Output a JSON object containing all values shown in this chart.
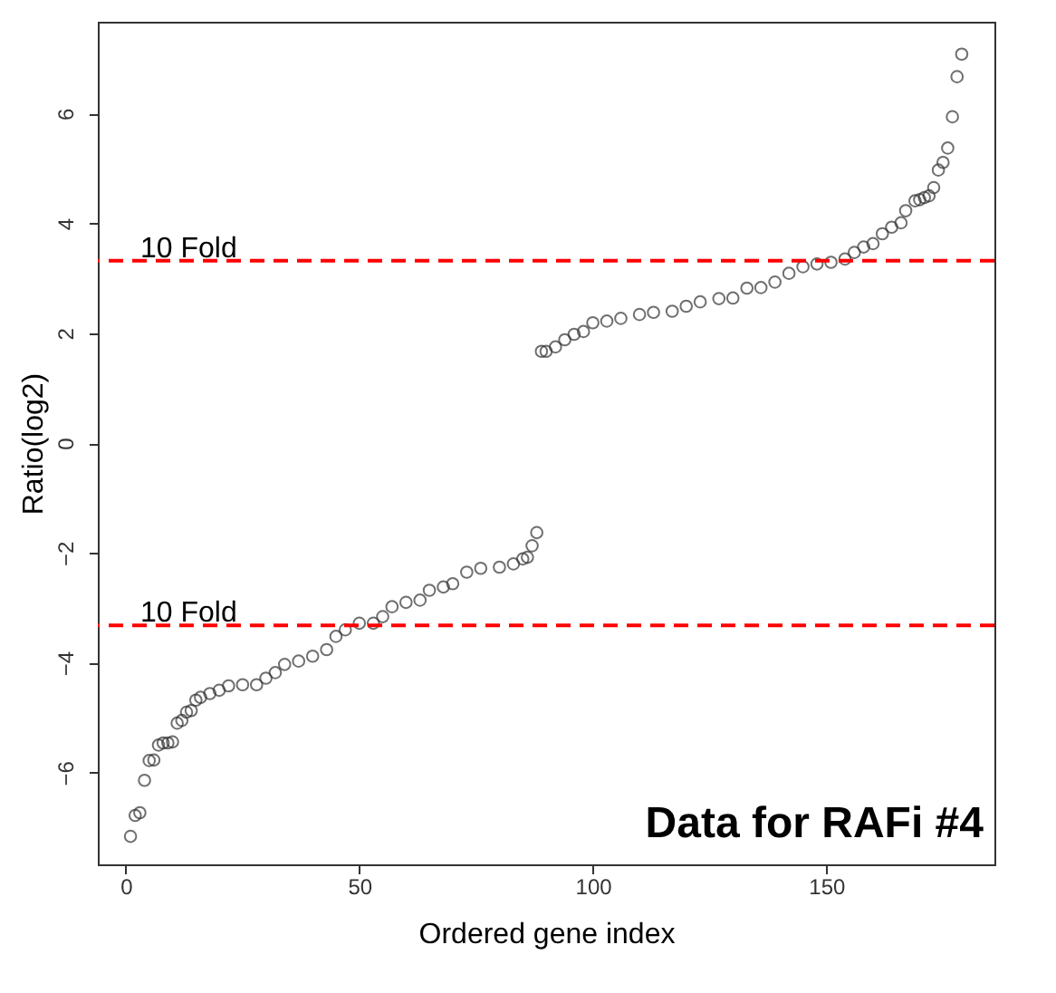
{
  "chart_data": {
    "type": "scatter",
    "title": "Data for RAFi #4",
    "xlabel": "Ordered gene index",
    "ylabel": "Ratio(log2)",
    "x": [
      1,
      2,
      3,
      4,
      5,
      6,
      7,
      8,
      9,
      10,
      11,
      12,
      13,
      14,
      15,
      16,
      18,
      20,
      22,
      25,
      28,
      30,
      32,
      34,
      37,
      40,
      43,
      45,
      47,
      50,
      53,
      55,
      57,
      60,
      63,
      65,
      68,
      70,
      73,
      76,
      80,
      83,
      85,
      86,
      87,
      88,
      89,
      90,
      92,
      94,
      96,
      98,
      100,
      103,
      106,
      110,
      113,
      117,
      120,
      123,
      127,
      130,
      133,
      136,
      139,
      142,
      145,
      148,
      151,
      154,
      156,
      158,
      160,
      162,
      164,
      166,
      167,
      169,
      170,
      171,
      172,
      173,
      174,
      175,
      176,
      177,
      178,
      179
    ],
    "series": [
      {
        "color": "#333333",
        "values": [
          -7.16,
          -6.78,
          -6.73,
          -6.14,
          -5.78,
          -5.77,
          -5.5,
          -5.46,
          -5.46,
          -5.44,
          -5.1,
          -5.05,
          -4.9,
          -4.87,
          -4.68,
          -4.63,
          -4.56,
          -4.5,
          -4.42,
          -4.4,
          -4.4,
          -4.28,
          -4.18,
          -4.03,
          -3.97,
          -3.88,
          -3.76,
          -3.52,
          -3.4,
          -3.28,
          -3.28,
          -3.16,
          -2.98,
          -2.9,
          -2.86,
          -2.68,
          -2.62,
          -2.56,
          -2.35,
          -2.28,
          -2.26,
          -2.2,
          -2.11,
          -2.08,
          -1.87,
          -1.63,
          1.67,
          1.67,
          1.75,
          1.88,
          1.98,
          2.03,
          2.19,
          2.22,
          2.27,
          2.34,
          2.38,
          2.4,
          2.49,
          2.57,
          2.63,
          2.64,
          2.82,
          2.83,
          2.93,
          3.09,
          3.21,
          3.26,
          3.29,
          3.35,
          3.47,
          3.57,
          3.63,
          3.81,
          3.93,
          4.01,
          4.23,
          4.41,
          4.43,
          4.47,
          4.5,
          4.65,
          4.97,
          5.11,
          5.37,
          5.94,
          6.67,
          7.08
        ]
      }
    ],
    "xlim": [
      -6,
      186
    ],
    "ylim": [
      -7.67,
      7.67
    ],
    "xticks": [
      0,
      50,
      100,
      150
    ],
    "yticks": [
      -6,
      -4,
      -2,
      0,
      2,
      4,
      6
    ],
    "ref_lines": [
      {
        "axis": "y",
        "value": 3.32,
        "label": "10 Fold",
        "color": "#ff0000",
        "line_style": "dashed"
      },
      {
        "axis": "y",
        "value": -3.32,
        "label": "10 Fold",
        "color": "#ff0000",
        "line_style": "dashed"
      }
    ],
    "marker": "circle",
    "grid": false
  }
}
